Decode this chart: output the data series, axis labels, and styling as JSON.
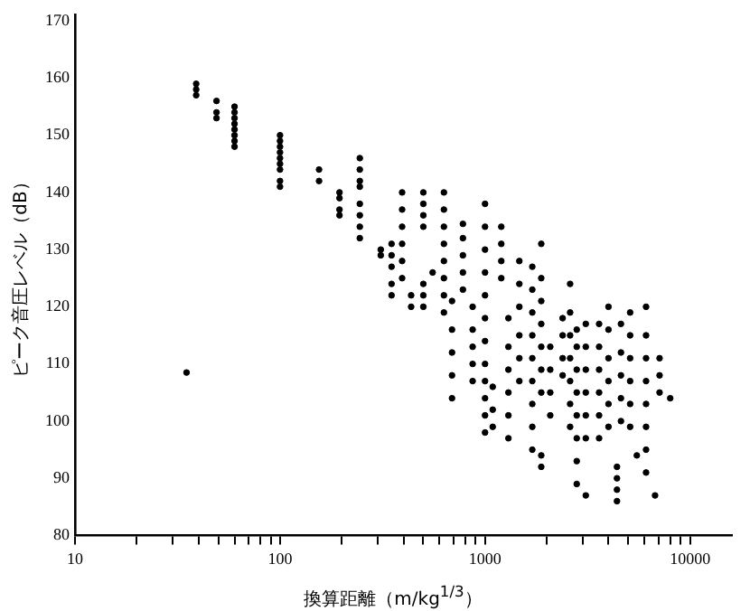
{
  "chart_data": {
    "type": "scatter",
    "xlabel": "換算距離（m/kg$^{1/3}$）",
    "ylabel": "ピーク音圧レベル（dB）",
    "log": "x",
    "xlim": [
      10,
      16000
    ],
    "ylim": [
      80,
      171
    ],
    "xticks": [
      10,
      {
        "value": 20,
        "label": null
      },
      {
        "value": 30,
        "label": null
      },
      {
        "value": 40,
        "label": null
      },
      {
        "value": 50,
        "label": null
      },
      {
        "value": 60,
        "label": null
      },
      {
        "value": 70,
        "label": null
      },
      {
        "value": 80,
        "label": null
      },
      {
        "value": 90,
        "label": null
      },
      100,
      {
        "value": 200,
        "label": null
      },
      {
        "value": 300,
        "label": null
      },
      {
        "value": 400,
        "label": null
      },
      {
        "value": 500,
        "label": null
      },
      {
        "value": 600,
        "label": null
      },
      {
        "value": 700,
        "label": null
      },
      {
        "value": 800,
        "label": null
      },
      {
        "value": 900,
        "label": null
      },
      1000,
      {
        "value": 2000,
        "label": null
      },
      {
        "value": 3000,
        "label": null
      },
      {
        "value": 4000,
        "label": null
      },
      {
        "value": 5000,
        "label": null
      },
      {
        "value": 6000,
        "label": null
      },
      {
        "value": 7000,
        "label": null
      },
      {
        "value": 8000,
        "label": null
      },
      {
        "value": 9000,
        "label": null
      },
      10000
    ],
    "yticks": [
      80,
      90,
      100,
      110,
      120,
      130,
      140,
      150,
      160,
      170
    ],
    "grid": false,
    "legend": false,
    "marker": "circle",
    "series": [
      {
        "color": "#000000",
        "x": [
          35,
          39,
          39,
          39,
          49,
          49,
          49,
          60,
          60,
          60,
          60,
          60,
          60,
          60,
          60,
          100,
          100,
          100,
          100,
          100,
          100,
          100,
          100,
          100,
          155,
          155,
          195,
          195,
          195,
          195,
          245,
          245,
          245,
          245,
          245,
          245,
          245,
          245,
          310,
          310,
          350,
          350,
          350,
          350,
          350,
          394,
          394,
          394,
          394,
          394,
          394,
          436,
          436,
          500,
          500,
          500,
          500,
          500,
          500,
          500,
          555,
          630,
          630,
          630,
          630,
          630,
          630,
          630,
          630,
          690,
          690,
          690,
          690,
          690,
          780,
          780,
          780,
          780,
          780,
          870,
          870,
          870,
          870,
          870,
          1000,
          1000,
          1000,
          1000,
          1000,
          1000,
          1000,
          1000,
          1000,
          1000,
          1000,
          1000,
          1090,
          1090,
          1090,
          1200,
          1200,
          1200,
          1200,
          1300,
          1300,
          1300,
          1300,
          1300,
          1300,
          1470,
          1470,
          1470,
          1470,
          1470,
          1470,
          1700,
          1700,
          1700,
          1700,
          1700,
          1700,
          1700,
          1700,
          1700,
          1880,
          1880,
          1880,
          1880,
          1880,
          1880,
          1880,
          1880,
          1880,
          2080,
          2080,
          2080,
          2080,
          2390,
          2390,
          2390,
          2390,
          2600,
          2600,
          2600,
          2600,
          2600,
          2600,
          2600,
          2800,
          2800,
          2800,
          2800,
          2800,
          2800,
          2800,
          2800,
          3100,
          3100,
          3100,
          3100,
          3100,
          3100,
          3100,
          3600,
          3600,
          3600,
          3600,
          3600,
          3600,
          4000,
          4000,
          4000,
          4000,
          4000,
          4000,
          4400,
          4400,
          4400,
          4400,
          4600,
          4600,
          4600,
          4600,
          4600,
          5100,
          5100,
          5100,
          5100,
          5100,
          5100,
          5500,
          6100,
          6100,
          6100,
          6100,
          6100,
          6100,
          6100,
          6100,
          6750,
          7100,
          7100,
          7100,
          8000
        ],
        "values": [
          108.5,
          157,
          158,
          159,
          153,
          154,
          156,
          148,
          149,
          150,
          151,
          152,
          153,
          154,
          155,
          141,
          142,
          144,
          145,
          146,
          147,
          148,
          149,
          150,
          142,
          144,
          136,
          137,
          139,
          140,
          132,
          134,
          136,
          138,
          141,
          142,
          144,
          146,
          129,
          130,
          122,
          124,
          127,
          129,
          131,
          125,
          128,
          131,
          134,
          137,
          140,
          120,
          122,
          120,
          122,
          124,
          134,
          136,
          138,
          140,
          126,
          119,
          122,
          125,
          128,
          131,
          134,
          137,
          140,
          104,
          108,
          112,
          116,
          121,
          123,
          126,
          129,
          132,
          134.5,
          107,
          110,
          113,
          116,
          120,
          98,
          101,
          104,
          107,
          110,
          114,
          118,
          122,
          126,
          130,
          134,
          138,
          99,
          102,
          106,
          125,
          128,
          131,
          134,
          97,
          101,
          105,
          109,
          113,
          118,
          107,
          111,
          115,
          120,
          124,
          128,
          95,
          99,
          103,
          107,
          111,
          115,
          119,
          123,
          127,
          92,
          94,
          105,
          109,
          113,
          117,
          121,
          125,
          131,
          101,
          105,
          109,
          113,
          108,
          111,
          115,
          118,
          99,
          103,
          107,
          111,
          115,
          119,
          124,
          89,
          93,
          97,
          101,
          105,
          109,
          113,
          116,
          87,
          97,
          101,
          105,
          109,
          113,
          117,
          97,
          101,
          105,
          109,
          113,
          117,
          99,
          103,
          107,
          111,
          116,
          120,
          86,
          88,
          90,
          92,
          100,
          104,
          108,
          112,
          117,
          99,
          103,
          107,
          111,
          115,
          119,
          94,
          91,
          95,
          99,
          103,
          107,
          111,
          115,
          120,
          87,
          105,
          108,
          111,
          104
        ]
      }
    ]
  }
}
